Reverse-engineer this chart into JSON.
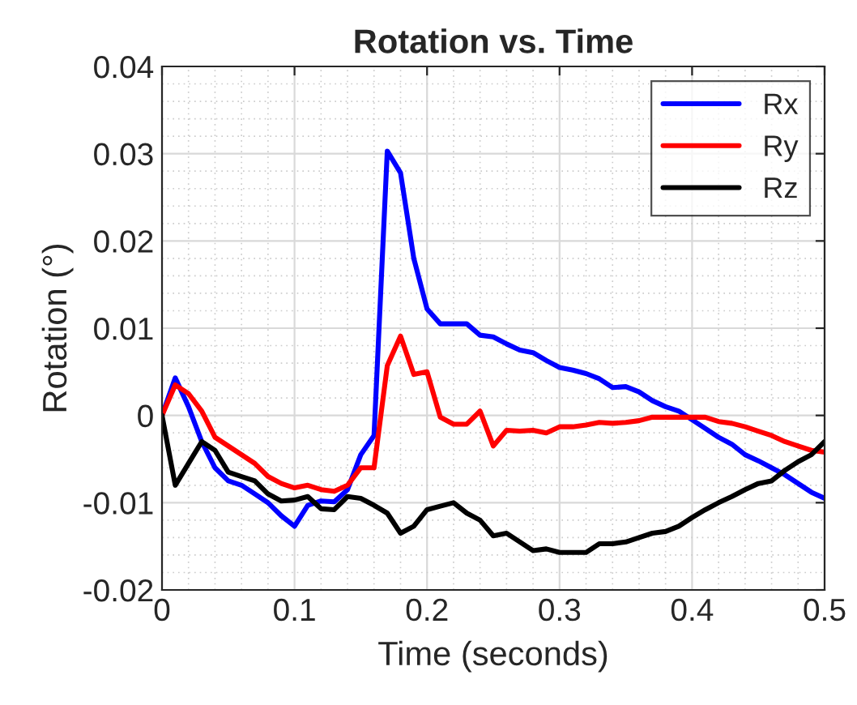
{
  "chart_data": {
    "type": "line",
    "title": "Rotation vs. Time",
    "xlabel": "Time (seconds)",
    "ylabel": "Rotation (°)",
    "x": [
      0,
      0.01,
      0.02,
      0.03,
      0.04,
      0.05,
      0.06,
      0.07,
      0.08,
      0.09,
      0.1,
      0.11,
      0.12,
      0.13,
      0.14,
      0.15,
      0.16,
      0.17,
      0.18,
      0.19,
      0.2,
      0.21,
      0.22,
      0.23,
      0.24,
      0.25,
      0.26,
      0.27,
      0.28,
      0.29,
      0.3,
      0.31,
      0.32,
      0.33,
      0.34,
      0.35,
      0.36,
      0.37,
      0.38,
      0.39,
      0.4,
      0.41,
      0.42,
      0.43,
      0.44,
      0.45,
      0.46,
      0.47,
      0.48,
      0.49,
      0.5
    ],
    "series": [
      {
        "name": "Rx",
        "color": "#0000ff",
        "values": [
          0,
          0.0043,
          0.001,
          -0.003,
          -0.006,
          -0.0075,
          -0.008,
          -0.009,
          -0.01,
          -0.0115,
          -0.0127,
          -0.0103,
          -0.0098,
          -0.0099,
          -0.0085,
          -0.0045,
          -0.0023,
          0.0303,
          0.0278,
          0.018,
          0.0122,
          0.0105,
          0.0105,
          0.0105,
          0.0092,
          0.009,
          0.0082,
          0.0075,
          0.0072,
          0.0063,
          0.0055,
          0.0052,
          0.0048,
          0.0042,
          0.0032,
          0.0033,
          0.0027,
          0.0017,
          0.001,
          0.0005,
          -0.0005,
          -0.0015,
          -0.0025,
          -0.0033,
          -0.0045,
          -0.0052,
          -0.006,
          -0.0068,
          -0.0078,
          -0.0088,
          -0.0095
        ]
      },
      {
        "name": "Ry",
        "color": "#ff0000",
        "values": [
          0,
          0.0035,
          0.0025,
          0.0005,
          -0.0025,
          -0.0035,
          -0.0045,
          -0.0055,
          -0.007,
          -0.0078,
          -0.0083,
          -0.008,
          -0.0085,
          -0.0087,
          -0.008,
          -0.006,
          -0.006,
          0.0057,
          0.0091,
          0.0047,
          0.005,
          -0.0002,
          -0.001,
          -0.001,
          0.0005,
          -0.0035,
          -0.0017,
          -0.0018,
          -0.0017,
          -0.002,
          -0.0013,
          -0.0013,
          -0.0011,
          -0.0008,
          -0.0009,
          -0.0008,
          -0.0006,
          -0.0002,
          -0.0002,
          -0.0002,
          -0.0002,
          -0.0002,
          -0.0007,
          -0.0009,
          -0.0013,
          -0.0018,
          -0.0023,
          -0.003,
          -0.0035,
          -0.004,
          -0.0042
        ]
      },
      {
        "name": "Rz",
        "color": "#000000",
        "values": [
          0,
          -0.008,
          -0.0055,
          -0.003,
          -0.004,
          -0.0065,
          -0.007,
          -0.0075,
          -0.009,
          -0.0098,
          -0.0097,
          -0.0093,
          -0.0107,
          -0.0108,
          -0.0093,
          -0.0095,
          -0.0103,
          -0.0112,
          -0.0135,
          -0.0127,
          -0.0108,
          -0.0104,
          -0.01,
          -0.0112,
          -0.012,
          -0.0138,
          -0.0135,
          -0.0145,
          -0.0155,
          -0.0153,
          -0.0157,
          -0.0157,
          -0.0157,
          -0.0147,
          -0.0147,
          -0.0145,
          -0.014,
          -0.0135,
          -0.0133,
          -0.0127,
          -0.0117,
          -0.0108,
          -0.01,
          -0.0093,
          -0.0085,
          -0.0078,
          -0.0075,
          -0.0063,
          -0.0053,
          -0.0045,
          -0.003
        ]
      }
    ],
    "xlim": [
      0,
      0.5
    ],
    "xticks": [
      0,
      0.1,
      0.2,
      0.3,
      0.4,
      0.5
    ],
    "ylim": [
      -0.02,
      0.04
    ],
    "yticks": [
      {
        "value": -0.02,
        "label": "-0.02"
      },
      {
        "value": -0.01,
        "label": "-0.01"
      },
      0,
      0.01,
      0.02,
      0.03,
      0.04
    ],
    "grid": true,
    "legend": "top right",
    "line_style": "solid",
    "marker": "none"
  }
}
